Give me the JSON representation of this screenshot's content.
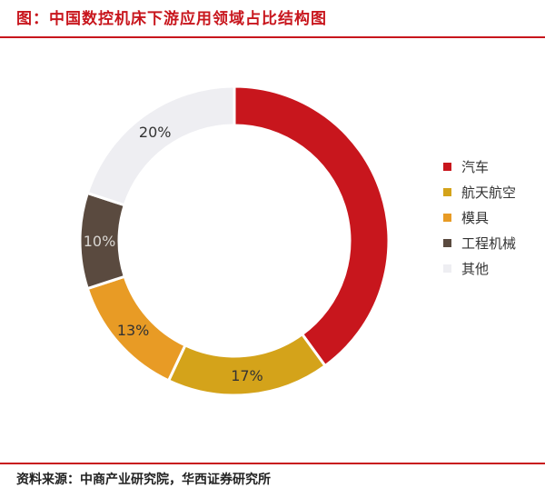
{
  "title": "图：中国数控机床下游应用领域占比结构图",
  "source": "资料来源：中商产业研究院，华西证券研究所",
  "chart_data": {
    "type": "pie",
    "variant": "donut",
    "categories": [
      "汽车",
      "航天航空",
      "模具",
      "工程机械",
      "其他"
    ],
    "values": [
      40,
      17,
      13,
      10,
      20
    ],
    "labels": [
      "",
      "17%",
      "13%",
      "10%",
      "20%"
    ],
    "colors": [
      "#c8161d",
      "#d4a31a",
      "#e89b25",
      "#5a4a3f",
      "#eeeef2"
    ],
    "legend_position": "right"
  }
}
